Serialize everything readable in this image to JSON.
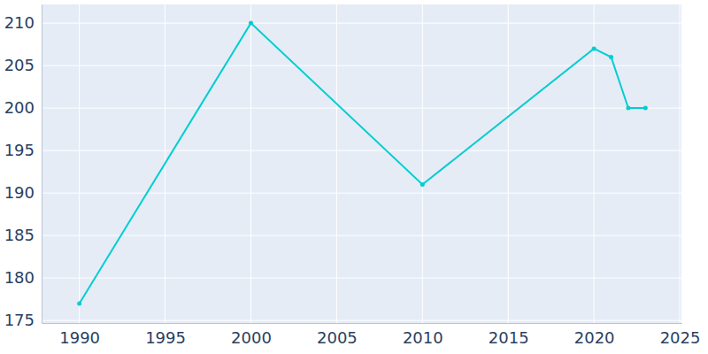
{
  "chart_data": {
    "type": "line",
    "x": [
      1990,
      2000,
      2010,
      2020,
      2021,
      2022,
      2023
    ],
    "values": [
      177,
      210,
      191,
      207,
      206,
      200,
      200
    ],
    "color": "#00ced1",
    "marker": "circle",
    "xlim": [
      1987.8,
      2025.1
    ],
    "xticks": [
      1990,
      1995,
      2000,
      2005,
      2010,
      2015,
      2020,
      2025
    ],
    "ylim": [
      174.7,
      212.2
    ],
    "yticks": [
      175,
      180,
      185,
      190,
      195,
      200,
      205,
      210
    ],
    "grid": true
  }
}
